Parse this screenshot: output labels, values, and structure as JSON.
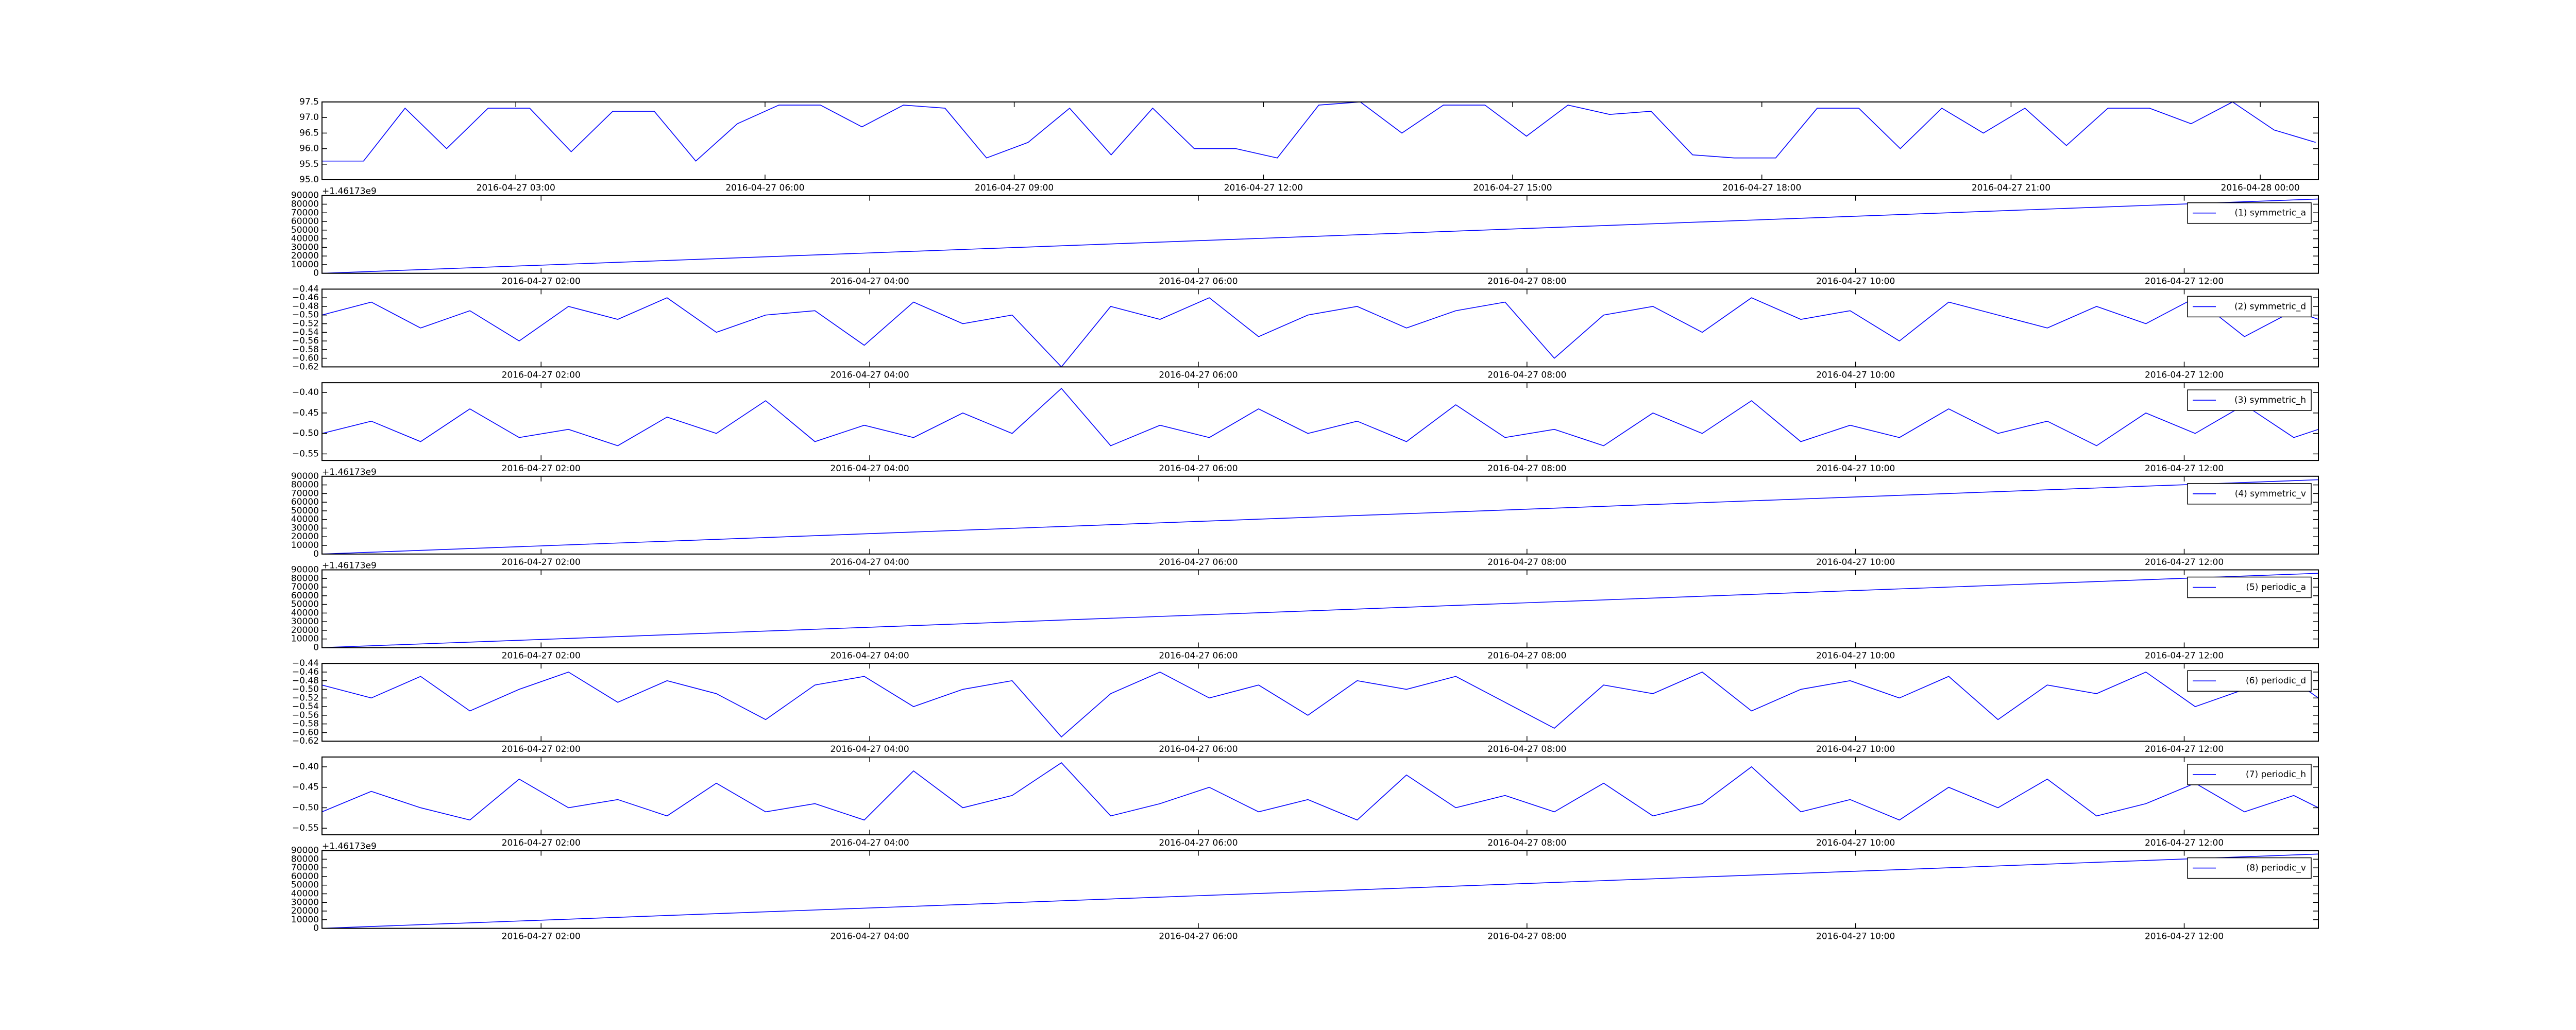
{
  "chart_data": [
    {
      "type": "line",
      "x": [
        "2016-04-27 00:40",
        "2016-04-27 01:10",
        "2016-04-27 01:40",
        "2016-04-27 02:10",
        "2016-04-27 02:40",
        "2016-04-27 03:10",
        "2016-04-27 03:40",
        "2016-04-27 04:10",
        "2016-04-27 04:40",
        "2016-04-27 05:10",
        "2016-04-27 05:40",
        "2016-04-27 06:10",
        "2016-04-27 06:40",
        "2016-04-27 07:10",
        "2016-04-27 07:40",
        "2016-04-27 08:10",
        "2016-04-27 08:40",
        "2016-04-27 09:10",
        "2016-04-27 09:40",
        "2016-04-27 10:10",
        "2016-04-27 10:40",
        "2016-04-27 11:10",
        "2016-04-27 11:40",
        "2016-04-27 12:10",
        "2016-04-27 12:40",
        "2016-04-27 13:10",
        "2016-04-27 13:40",
        "2016-04-27 14:10",
        "2016-04-27 14:40",
        "2016-04-27 15:10",
        "2016-04-27 15:40",
        "2016-04-27 16:10",
        "2016-04-27 16:40",
        "2016-04-27 17:10",
        "2016-04-27 17:40",
        "2016-04-27 18:10",
        "2016-04-27 18:40",
        "2016-04-27 19:10",
        "2016-04-27 19:40",
        "2016-04-27 20:10",
        "2016-04-27 20:40",
        "2016-04-27 21:10",
        "2016-04-27 21:40",
        "2016-04-27 22:10",
        "2016-04-27 22:40",
        "2016-04-27 23:10",
        "2016-04-27 23:40",
        "2016-04-28 00:10",
        "2016-04-28 00:40"
      ],
      "series": [
        {
          "color": "#0000ff",
          "values": [
            95.6,
            95.6,
            97.3,
            96.0,
            97.3,
            97.3,
            95.9,
            97.2,
            97.2,
            95.6,
            96.8,
            97.4,
            97.4,
            96.7,
            97.4,
            97.3,
            95.7,
            96.2,
            97.3,
            95.8,
            97.3,
            96.0,
            96.0,
            95.7,
            97.4,
            97.5,
            96.5,
            97.4,
            97.4,
            96.4,
            97.4,
            97.1,
            97.2,
            95.8,
            95.7,
            95.7,
            97.3,
            97.3,
            96.0,
            97.3,
            96.5,
            97.3,
            96.1,
            97.3,
            97.3,
            96.8,
            97.5,
            96.6,
            96.2
          ]
        }
      ],
      "xlim": [
        "2016-04-27 00:40",
        "2016-04-28 00:42"
      ],
      "xticks": [
        "2016-04-27 03:00",
        "2016-04-27 06:00",
        "2016-04-27 09:00",
        "2016-04-27 12:00",
        "2016-04-27 15:00",
        "2016-04-27 18:00",
        "2016-04-27 21:00",
        "2016-04-28 00:00"
      ],
      "ylim": [
        95,
        97.5
      ],
      "yticks": [
        {
          "value": 95,
          "label": "95.0"
        },
        95.5,
        {
          "value": 96,
          "label": "96.0"
        },
        96.5,
        {
          "value": 97,
          "label": "97.0"
        },
        97.5
      ]
    },
    {
      "type": "line",
      "x": [
        "2016-04-27 00:40",
        "2016-04-27 12:49"
      ],
      "series": [
        {
          "name": "(1) symmetric_a",
          "color": "#0000ff",
          "values": [
            0,
            86000
          ]
        }
      ],
      "xlim": [
        "2016-04-27 00:40",
        "2016-04-27 12:49"
      ],
      "xticks": [
        "2016-04-27 02:00",
        "2016-04-27 04:00",
        "2016-04-27 06:00",
        "2016-04-27 08:00",
        "2016-04-27 10:00",
        "2016-04-27 12:00"
      ],
      "ylim": [
        0,
        90000
      ],
      "yticks": [
        0,
        10000,
        20000,
        30000,
        40000,
        50000,
        60000,
        70000,
        80000,
        90000
      ],
      "offset_text": "+1.46173e9",
      "legend": "upper right"
    },
    {
      "type": "line",
      "x": [
        "2016-04-27 00:40",
        "2016-04-27 00:58",
        "2016-04-27 01:16",
        "2016-04-27 01:34",
        "2016-04-27 01:52",
        "2016-04-27 02:10",
        "2016-04-27 02:28",
        "2016-04-27 02:46",
        "2016-04-27 03:04",
        "2016-04-27 03:22",
        "2016-04-27 03:40",
        "2016-04-27 03:58",
        "2016-04-27 04:16",
        "2016-04-27 04:34",
        "2016-04-27 04:52",
        "2016-04-27 05:10",
        "2016-04-27 05:28",
        "2016-04-27 05:46",
        "2016-04-27 06:04",
        "2016-04-27 06:22",
        "2016-04-27 06:40",
        "2016-04-27 06:58",
        "2016-04-27 07:16",
        "2016-04-27 07:34",
        "2016-04-27 07:52",
        "2016-04-27 08:10",
        "2016-04-27 08:28",
        "2016-04-27 08:46",
        "2016-04-27 09:04",
        "2016-04-27 09:22",
        "2016-04-27 09:40",
        "2016-04-27 09:58",
        "2016-04-27 10:16",
        "2016-04-27 10:34",
        "2016-04-27 10:52",
        "2016-04-27 11:10",
        "2016-04-27 11:28",
        "2016-04-27 11:46",
        "2016-04-27 12:04",
        "2016-04-27 12:22",
        "2016-04-27 12:40",
        "2016-04-27 12:49"
      ],
      "series": [
        {
          "name": "(2) symmetric_d",
          "color": "#0000ff",
          "values": [
            -0.5,
            -0.47,
            -0.53,
            -0.49,
            -0.56,
            -0.48,
            -0.51,
            -0.46,
            -0.54,
            -0.5,
            -0.49,
            -0.57,
            -0.47,
            -0.52,
            -0.5,
            -0.62,
            -0.48,
            -0.51,
            -0.46,
            -0.55,
            -0.5,
            -0.48,
            -0.53,
            -0.49,
            -0.47,
            -0.6,
            -0.5,
            -0.48,
            -0.54,
            -0.46,
            -0.51,
            -0.49,
            -0.56,
            -0.47,
            -0.5,
            -0.53,
            -0.48,
            -0.52,
            -0.46,
            -0.55,
            -0.49,
            -0.51
          ]
        }
      ],
      "xlim": [
        "2016-04-27 00:40",
        "2016-04-27 12:49"
      ],
      "xticks": [
        "2016-04-27 02:00",
        "2016-04-27 04:00",
        "2016-04-27 06:00",
        "2016-04-27 08:00",
        "2016-04-27 10:00",
        "2016-04-27 12:00"
      ],
      "ylim": [
        -0.62,
        -0.44
      ],
      "yticks": [
        {
          "value": -0.62,
          "label": "−0.62"
        },
        {
          "value": -0.6,
          "label": "−0.60"
        },
        {
          "value": -0.58,
          "label": "−0.58"
        },
        {
          "value": -0.56,
          "label": "−0.56"
        },
        {
          "value": -0.54,
          "label": "−0.54"
        },
        {
          "value": -0.52,
          "label": "−0.52"
        },
        {
          "value": -0.5,
          "label": "−0.50"
        },
        {
          "value": -0.48,
          "label": "−0.48"
        },
        {
          "value": -0.46,
          "label": "−0.46"
        },
        {
          "value": -0.44,
          "label": "−0.44"
        }
      ],
      "legend": "upper right"
    },
    {
      "type": "line",
      "x": [
        "2016-04-27 00:40",
        "2016-04-27 00:58",
        "2016-04-27 01:16",
        "2016-04-27 01:34",
        "2016-04-27 01:52",
        "2016-04-27 02:10",
        "2016-04-27 02:28",
        "2016-04-27 02:46",
        "2016-04-27 03:04",
        "2016-04-27 03:22",
        "2016-04-27 03:40",
        "2016-04-27 03:58",
        "2016-04-27 04:16",
        "2016-04-27 04:34",
        "2016-04-27 04:52",
        "2016-04-27 05:10",
        "2016-04-27 05:28",
        "2016-04-27 05:46",
        "2016-04-27 06:04",
        "2016-04-27 06:22",
        "2016-04-27 06:40",
        "2016-04-27 06:58",
        "2016-04-27 07:16",
        "2016-04-27 07:34",
        "2016-04-27 07:52",
        "2016-04-27 08:10",
        "2016-04-27 08:28",
        "2016-04-27 08:46",
        "2016-04-27 09:04",
        "2016-04-27 09:22",
        "2016-04-27 09:40",
        "2016-04-27 09:58",
        "2016-04-27 10:16",
        "2016-04-27 10:34",
        "2016-04-27 10:52",
        "2016-04-27 11:10",
        "2016-04-27 11:28",
        "2016-04-27 11:46",
        "2016-04-27 12:04",
        "2016-04-27 12:22",
        "2016-04-27 12:40",
        "2016-04-27 12:49"
      ],
      "series": [
        {
          "name": "(3) symmetric_h",
          "color": "#0000ff",
          "values": [
            -0.5,
            -0.47,
            -0.52,
            -0.44,
            -0.51,
            -0.49,
            -0.53,
            -0.46,
            -0.5,
            -0.42,
            -0.52,
            -0.48,
            -0.51,
            -0.45,
            -0.5,
            -0.39,
            -0.53,
            -0.48,
            -0.51,
            -0.44,
            -0.5,
            -0.47,
            -0.52,
            -0.43,
            -0.51,
            -0.49,
            -0.53,
            -0.45,
            -0.5,
            -0.42,
            -0.52,
            -0.48,
            -0.51,
            -0.44,
            -0.5,
            -0.47,
            -0.53,
            -0.45,
            -0.5,
            -0.43,
            -0.51,
            -0.49
          ]
        }
      ],
      "xlim": [
        "2016-04-27 00:40",
        "2016-04-27 12:49"
      ],
      "xticks": [
        "2016-04-27 02:00",
        "2016-04-27 04:00",
        "2016-04-27 06:00",
        "2016-04-27 08:00",
        "2016-04-27 10:00",
        "2016-04-27 12:00"
      ],
      "ylim": [
        -0.566,
        -0.376
      ],
      "yticks": [
        {
          "value": -0.55,
          "label": "−0.55"
        },
        {
          "value": -0.5,
          "label": "−0.50"
        },
        {
          "value": -0.45,
          "label": "−0.45"
        },
        {
          "value": -0.4,
          "label": "−0.40"
        }
      ],
      "legend": "upper right"
    },
    {
      "type": "line",
      "x": [
        "2016-04-27 00:40",
        "2016-04-27 12:49"
      ],
      "series": [
        {
          "name": "(4) symmetric_v",
          "color": "#0000ff",
          "values": [
            0,
            86000
          ]
        }
      ],
      "xlim": [
        "2016-04-27 00:40",
        "2016-04-27 12:49"
      ],
      "xticks": [
        "2016-04-27 02:00",
        "2016-04-27 04:00",
        "2016-04-27 06:00",
        "2016-04-27 08:00",
        "2016-04-27 10:00",
        "2016-04-27 12:00"
      ],
      "ylim": [
        0,
        90000
      ],
      "yticks": [
        0,
        10000,
        20000,
        30000,
        40000,
        50000,
        60000,
        70000,
        80000,
        90000
      ],
      "offset_text": "+1.46173e9",
      "legend": "upper right"
    },
    {
      "type": "line",
      "x": [
        "2016-04-27 00:40",
        "2016-04-27 12:49"
      ],
      "series": [
        {
          "name": "(5) periodic_a",
          "color": "#0000ff",
          "values": [
            0,
            86000
          ]
        }
      ],
      "xlim": [
        "2016-04-27 00:40",
        "2016-04-27 12:49"
      ],
      "xticks": [
        "2016-04-27 02:00",
        "2016-04-27 04:00",
        "2016-04-27 06:00",
        "2016-04-27 08:00",
        "2016-04-27 10:00",
        "2016-04-27 12:00"
      ],
      "ylim": [
        0,
        90000
      ],
      "yticks": [
        0,
        10000,
        20000,
        30000,
        40000,
        50000,
        60000,
        70000,
        80000,
        90000
      ],
      "offset_text": "+1.46173e9",
      "legend": "upper right"
    },
    {
      "type": "line",
      "x": [
        "2016-04-27 00:40",
        "2016-04-27 00:58",
        "2016-04-27 01:16",
        "2016-04-27 01:34",
        "2016-04-27 01:52",
        "2016-04-27 02:10",
        "2016-04-27 02:28",
        "2016-04-27 02:46",
        "2016-04-27 03:04",
        "2016-04-27 03:22",
        "2016-04-27 03:40",
        "2016-04-27 03:58",
        "2016-04-27 04:16",
        "2016-04-27 04:34",
        "2016-04-27 04:52",
        "2016-04-27 05:10",
        "2016-04-27 05:28",
        "2016-04-27 05:46",
        "2016-04-27 06:04",
        "2016-04-27 06:22",
        "2016-04-27 06:40",
        "2016-04-27 06:58",
        "2016-04-27 07:16",
        "2016-04-27 07:34",
        "2016-04-27 07:52",
        "2016-04-27 08:10",
        "2016-04-27 08:28",
        "2016-04-27 08:46",
        "2016-04-27 09:04",
        "2016-04-27 09:22",
        "2016-04-27 09:40",
        "2016-04-27 09:58",
        "2016-04-27 10:16",
        "2016-04-27 10:34",
        "2016-04-27 10:52",
        "2016-04-27 11:10",
        "2016-04-27 11:28",
        "2016-04-27 11:46",
        "2016-04-27 12:04",
        "2016-04-27 12:22",
        "2016-04-27 12:40",
        "2016-04-27 12:49"
      ],
      "series": [
        {
          "name": "(6) periodic_d",
          "color": "#0000ff",
          "values": [
            -0.49,
            -0.52,
            -0.47,
            -0.55,
            -0.5,
            -0.46,
            -0.53,
            -0.48,
            -0.51,
            -0.57,
            -0.49,
            -0.47,
            -0.54,
            -0.5,
            -0.48,
            -0.61,
            -0.51,
            -0.46,
            -0.52,
            -0.49,
            -0.56,
            -0.48,
            -0.5,
            -0.47,
            -0.53,
            -0.59,
            -0.49,
            -0.51,
            -0.46,
            -0.55,
            -0.5,
            -0.48,
            -0.52,
            -0.47,
            -0.57,
            -0.49,
            -0.51,
            -0.46,
            -0.54,
            -0.5,
            -0.48,
            -0.52
          ]
        }
      ],
      "xlim": [
        "2016-04-27 00:40",
        "2016-04-27 12:49"
      ],
      "xticks": [
        "2016-04-27 02:00",
        "2016-04-27 04:00",
        "2016-04-27 06:00",
        "2016-04-27 08:00",
        "2016-04-27 10:00",
        "2016-04-27 12:00"
      ],
      "ylim": [
        -0.62,
        -0.44
      ],
      "yticks": [
        {
          "value": -0.62,
          "label": "−0.62"
        },
        {
          "value": -0.6,
          "label": "−0.60"
        },
        {
          "value": -0.58,
          "label": "−0.58"
        },
        {
          "value": -0.56,
          "label": "−0.56"
        },
        {
          "value": -0.54,
          "label": "−0.54"
        },
        {
          "value": -0.52,
          "label": "−0.52"
        },
        {
          "value": -0.5,
          "label": "−0.50"
        },
        {
          "value": -0.48,
          "label": "−0.48"
        },
        {
          "value": -0.46,
          "label": "−0.46"
        },
        {
          "value": -0.44,
          "label": "−0.44"
        }
      ],
      "legend": "upper right"
    },
    {
      "type": "line",
      "x": [
        "2016-04-27 00:40",
        "2016-04-27 00:58",
        "2016-04-27 01:16",
        "2016-04-27 01:34",
        "2016-04-27 01:52",
        "2016-04-27 02:10",
        "2016-04-27 02:28",
        "2016-04-27 02:46",
        "2016-04-27 03:04",
        "2016-04-27 03:22",
        "2016-04-27 03:40",
        "2016-04-27 03:58",
        "2016-04-27 04:16",
        "2016-04-27 04:34",
        "2016-04-27 04:52",
        "2016-04-27 05:10",
        "2016-04-27 05:28",
        "2016-04-27 05:46",
        "2016-04-27 06:04",
        "2016-04-27 06:22",
        "2016-04-27 06:40",
        "2016-04-27 06:58",
        "2016-04-27 07:16",
        "2016-04-27 07:34",
        "2016-04-27 07:52",
        "2016-04-27 08:10",
        "2016-04-27 08:28",
        "2016-04-27 08:46",
        "2016-04-27 09:04",
        "2016-04-27 09:22",
        "2016-04-27 09:40",
        "2016-04-27 09:58",
        "2016-04-27 10:16",
        "2016-04-27 10:34",
        "2016-04-27 10:52",
        "2016-04-27 11:10",
        "2016-04-27 11:28",
        "2016-04-27 11:46",
        "2016-04-27 12:04",
        "2016-04-27 12:22",
        "2016-04-27 12:40",
        "2016-04-27 12:49"
      ],
      "series": [
        {
          "name": "(7) periodic_h",
          "color": "#0000ff",
          "values": [
            -0.51,
            -0.46,
            -0.5,
            -0.53,
            -0.43,
            -0.5,
            -0.48,
            -0.52,
            -0.44,
            -0.51,
            -0.49,
            -0.53,
            -0.41,
            -0.5,
            -0.47,
            -0.39,
            -0.52,
            -0.49,
            -0.45,
            -0.51,
            -0.48,
            -0.53,
            -0.42,
            -0.5,
            -0.47,
            -0.51,
            -0.44,
            -0.52,
            -0.49,
            -0.4,
            -0.51,
            -0.48,
            -0.53,
            -0.45,
            -0.5,
            -0.43,
            -0.52,
            -0.49,
            -0.44,
            -0.51,
            -0.47,
            -0.5
          ]
        }
      ],
      "xlim": [
        "2016-04-27 00:40",
        "2016-04-27 12:49"
      ],
      "xticks": [
        "2016-04-27 02:00",
        "2016-04-27 04:00",
        "2016-04-27 06:00",
        "2016-04-27 08:00",
        "2016-04-27 10:00",
        "2016-04-27 12:00"
      ],
      "ylim": [
        -0.566,
        -0.376
      ],
      "yticks": [
        {
          "value": -0.55,
          "label": "−0.55"
        },
        {
          "value": -0.5,
          "label": "−0.50"
        },
        {
          "value": -0.45,
          "label": "−0.45"
        },
        {
          "value": -0.4,
          "label": "−0.40"
        }
      ],
      "legend": "upper right"
    },
    {
      "type": "line",
      "x": [
        "2016-04-27 00:40",
        "2016-04-27 12:49"
      ],
      "series": [
        {
          "name": "(8) periodic_v",
          "color": "#0000ff",
          "values": [
            0,
            86000
          ]
        }
      ],
      "xlim": [
        "2016-04-27 00:40",
        "2016-04-27 12:49"
      ],
      "xticks": [
        "2016-04-27 02:00",
        "2016-04-27 04:00",
        "2016-04-27 06:00",
        "2016-04-27 08:00",
        "2016-04-27 10:00",
        "2016-04-27 12:00"
      ],
      "ylim": [
        0,
        90000
      ],
      "yticks": [
        0,
        10000,
        20000,
        30000,
        40000,
        50000,
        60000,
        70000,
        80000,
        90000
      ],
      "offset_text": "+1.46173e9",
      "legend": "upper right"
    }
  ]
}
